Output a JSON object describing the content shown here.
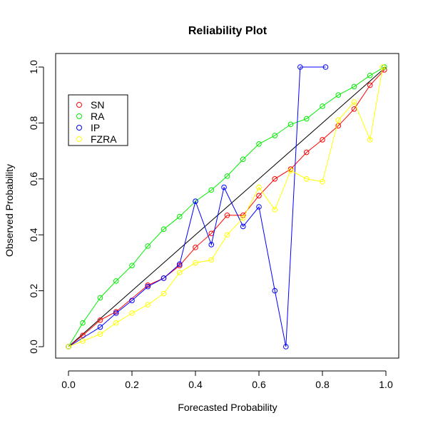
{
  "chart_data": {
    "type": "line",
    "title": "Reliability Plot",
    "xlabel": "Forecasted Probability",
    "ylabel": "Observed Probability",
    "xlim": [
      0,
      1
    ],
    "ylim": [
      0,
      1
    ],
    "x_ticks": [
      "0.0",
      "0.2",
      "0.4",
      "0.6",
      "0.8",
      "1.0"
    ],
    "y_ticks": [
      "0.0",
      "0.2",
      "0.4",
      "0.6",
      "0.8",
      "1.0"
    ],
    "grid": false,
    "legend": "top-left",
    "reference_line": {
      "from": [
        0,
        0
      ],
      "to": [
        1,
        1
      ],
      "color": "#000000"
    },
    "series": [
      {
        "name": "SN",
        "color": "#ff0000",
        "points": [
          [
            0.0,
            0.0
          ],
          [
            0.045,
            0.04
          ],
          [
            0.1,
            0.095
          ],
          [
            0.15,
            0.125
          ],
          [
            0.25,
            0.22
          ],
          [
            0.3,
            0.245
          ],
          [
            0.35,
            0.29
          ],
          [
            0.4,
            0.355
          ],
          [
            0.45,
            0.405
          ],
          [
            0.5,
            0.47
          ],
          [
            0.55,
            0.47
          ],
          [
            0.6,
            0.54
          ],
          [
            0.65,
            0.6
          ],
          [
            0.7,
            0.635
          ],
          [
            0.75,
            0.695
          ],
          [
            0.8,
            0.74
          ],
          [
            0.85,
            0.79
          ],
          [
            0.9,
            0.85
          ],
          [
            0.95,
            0.935
          ],
          [
            0.995,
            0.99
          ]
        ]
      },
      {
        "name": "RA",
        "color": "#00ee00",
        "points": [
          [
            0.0,
            0.0
          ],
          [
            0.045,
            0.085
          ],
          [
            0.1,
            0.175
          ],
          [
            0.15,
            0.235
          ],
          [
            0.2,
            0.29
          ],
          [
            0.25,
            0.36
          ],
          [
            0.3,
            0.42
          ],
          [
            0.35,
            0.465
          ],
          [
            0.4,
            0.52
          ],
          [
            0.45,
            0.56
          ],
          [
            0.5,
            0.61
          ],
          [
            0.55,
            0.67
          ],
          [
            0.6,
            0.725
          ],
          [
            0.65,
            0.755
          ],
          [
            0.7,
            0.795
          ],
          [
            0.75,
            0.815
          ],
          [
            0.8,
            0.86
          ],
          [
            0.85,
            0.9
          ],
          [
            0.9,
            0.93
          ],
          [
            0.95,
            0.97
          ],
          [
            0.995,
            1.0
          ]
        ]
      },
      {
        "name": "IP",
        "color": "#0000ff",
        "points": [
          [
            0.0,
            0.0
          ],
          [
            0.1,
            0.07
          ],
          [
            0.15,
            0.12
          ],
          [
            0.2,
            0.165
          ],
          [
            0.25,
            0.215
          ],
          [
            0.3,
            0.245
          ],
          [
            0.35,
            0.295
          ],
          [
            0.4,
            0.52
          ],
          [
            0.45,
            0.365
          ],
          [
            0.49,
            0.57
          ],
          [
            0.55,
            0.43
          ],
          [
            0.6,
            0.5
          ],
          [
            0.65,
            0.2
          ],
          [
            0.685,
            0.0
          ],
          [
            0.73,
            1.0
          ],
          [
            0.81,
            1.0
          ]
        ]
      },
      {
        "name": "FZRA",
        "color": "#ffff00",
        "points": [
          [
            0.0,
            0.0
          ],
          [
            0.045,
            0.02
          ],
          [
            0.1,
            0.045
          ],
          [
            0.15,
            0.085
          ],
          [
            0.2,
            0.12
          ],
          [
            0.25,
            0.15
          ],
          [
            0.3,
            0.19
          ],
          [
            0.35,
            0.265
          ],
          [
            0.4,
            0.3
          ],
          [
            0.45,
            0.31
          ],
          [
            0.5,
            0.4
          ],
          [
            0.55,
            0.46
          ],
          [
            0.6,
            0.57
          ],
          [
            0.65,
            0.49
          ],
          [
            0.7,
            0.63
          ],
          [
            0.75,
            0.6
          ],
          [
            0.8,
            0.59
          ],
          [
            0.85,
            0.81
          ],
          [
            0.9,
            0.875
          ],
          [
            0.95,
            0.74
          ],
          [
            0.99,
            1.0
          ]
        ]
      }
    ]
  }
}
